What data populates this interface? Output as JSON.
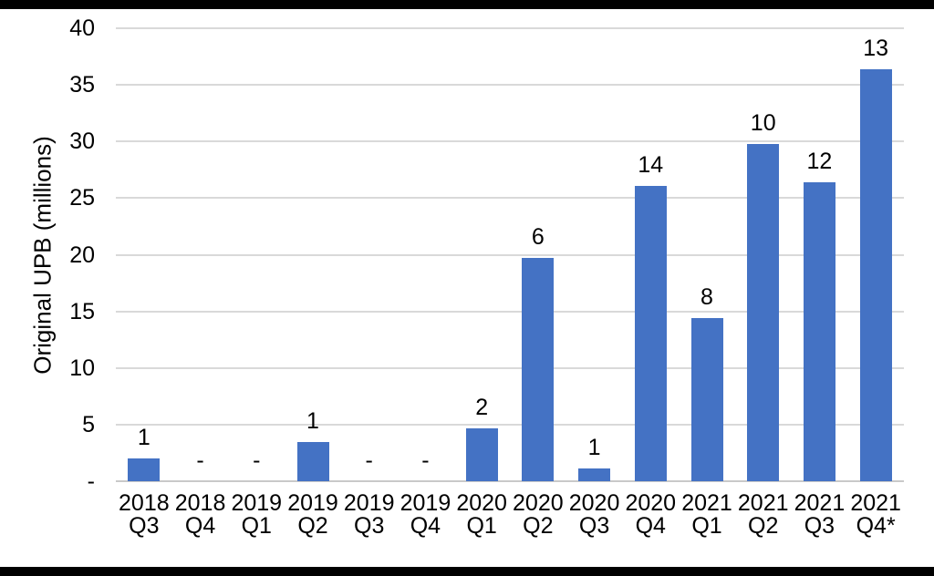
{
  "chart_data": {
    "type": "bar",
    "title": "",
    "xlabel": "",
    "ylabel": "Original UPB (millions)",
    "ylim": [
      0,
      40
    ],
    "ytick_step": 5,
    "grid": true,
    "legend": false,
    "bar_color": "#4472C4",
    "gridline_color": "#D9D9D9",
    "axisline_color": "#C9C9C9",
    "yticks": [
      {
        "label": "40",
        "value": 40
      },
      {
        "label": "35",
        "value": 35
      },
      {
        "label": "30",
        "value": 30
      },
      {
        "label": "25",
        "value": 25
      },
      {
        "label": "20",
        "value": 20
      },
      {
        "label": "15",
        "value": 15
      },
      {
        "label": "10",
        "value": 10
      },
      {
        "label": "5",
        "value": 5
      },
      {
        "label": "-",
        "value": 0
      }
    ],
    "categories": [
      {
        "year": "2018",
        "quarter": "Q3"
      },
      {
        "year": "2018",
        "quarter": "Q4"
      },
      {
        "year": "2019",
        "quarter": "Q1"
      },
      {
        "year": "2019",
        "quarter": "Q2"
      },
      {
        "year": "2019",
        "quarter": "Q3"
      },
      {
        "year": "2019",
        "quarter": "Q4"
      },
      {
        "year": "2020",
        "quarter": "Q1"
      },
      {
        "year": "2020",
        "quarter": "Q2"
      },
      {
        "year": "2020",
        "quarter": "Q3"
      },
      {
        "year": "2020",
        "quarter": "Q4"
      },
      {
        "year": "2021",
        "quarter": "Q1"
      },
      {
        "year": "2021",
        "quarter": "Q2"
      },
      {
        "year": "2021",
        "quarter": "Q3"
      },
      {
        "year": "2021",
        "quarter": "Q4*"
      }
    ],
    "values": [
      2.0,
      0,
      0,
      3.5,
      0,
      0,
      4.7,
      19.7,
      1.1,
      26.1,
      14.4,
      29.8,
      26.4,
      36.4
    ],
    "data_labels": [
      "1",
      "-",
      "-",
      "1",
      "-",
      "-",
      "2",
      "6",
      "1",
      "14",
      "8",
      "10",
      "12",
      "13"
    ]
  }
}
